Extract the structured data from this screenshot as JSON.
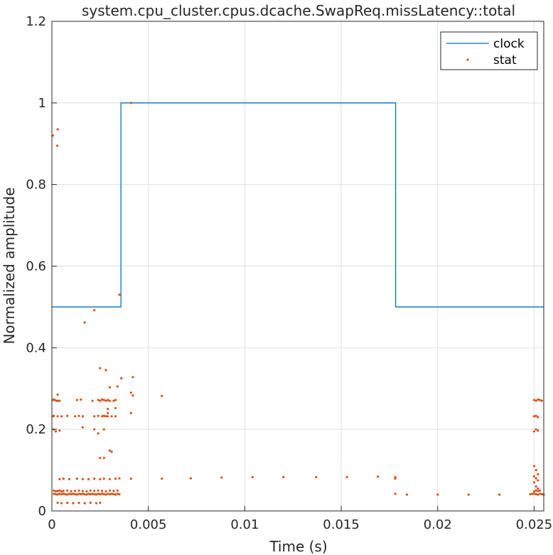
{
  "chart_data": {
    "type": "line",
    "title": "system.cpu_cluster.cpus.dcache.SwapReq.missLatency::total",
    "xlabel": "Time (s)",
    "ylabel": "Normalized amplitude",
    "xlim": [
      0,
      0.0255
    ],
    "ylim": [
      0,
      1.2
    ],
    "grid": true,
    "legend_position": "top-right",
    "x_ticks": [
      0,
      0.005,
      0.01,
      0.015,
      0.02,
      0.025
    ],
    "x_tick_labels": [
      "0",
      "0.005",
      "0.01",
      "0.015",
      "0.02",
      "0.025"
    ],
    "y_ticks": [
      0,
      0.2,
      0.4,
      0.6,
      0.8,
      1,
      1.2
    ],
    "y_tick_labels": [
      "0",
      "0.2",
      "0.4",
      "0.6",
      "0.8",
      "1",
      "1.2"
    ],
    "series": [
      {
        "name": "clock",
        "style": "line",
        "color": "#0072BD",
        "x": [
          0,
          0.00358,
          0.00358,
          0.01782,
          0.01782,
          0.0255
        ],
        "y": [
          0.5,
          0.5,
          1.0,
          1.0,
          0.5,
          0.5
        ]
      },
      {
        "name": "stat",
        "style": "points",
        "color": "#D95319",
        "points": [
          [
            5e-05,
            0.92
          ],
          [
            0.0003,
            0.935
          ],
          [
            0.00028,
            0.895
          ],
          [
            0.0017,
            0.462
          ],
          [
            0.0022,
            0.492
          ],
          [
            0.0035,
            0.53
          ],
          [
            0.0041,
            1.0
          ],
          [
            0.0025,
            0.35
          ],
          [
            0.0028,
            0.345
          ],
          [
            0.0036,
            0.325
          ],
          [
            0.0042,
            0.328
          ],
          [
            0.003,
            0.303
          ],
          [
            0.0034,
            0.305
          ],
          [
            0.0041,
            0.29
          ],
          [
            0.0042,
            0.283
          ],
          [
            0.0057,
            0.282
          ],
          [
            0.0003,
            0.285
          ],
          [
            0.0029,
            0.25
          ],
          [
            0.0033,
            0.252
          ],
          [
            0.003,
            0.148
          ],
          [
            0.0031,
            0.145
          ],
          [
            0.0027,
            0.13
          ],
          [
            0.0025,
            0.13
          ],
          [
            0.0022,
            0.2
          ],
          [
            0.0024,
            0.19
          ],
          [
            0.0016,
            0.205
          ],
          [
            0.0027,
            0.2
          ],
          [
            0.0029,
            0.24
          ],
          [
            0.0041,
            0.24
          ],
          [
            0.0001,
            0.2
          ],
          [
            0.0002,
            0.195
          ],
          [
            0.0004,
            0.197
          ],
          [
            0.00023,
            0.27
          ],
          [
            5e-05,
            0.272
          ],
          [
            0.0001,
            0.273
          ],
          [
            0.00015,
            0.272
          ],
          [
            0.0003,
            0.27
          ],
          [
            0.0004,
            0.27
          ],
          [
            0.0013,
            0.272
          ],
          [
            0.0015,
            0.273
          ],
          [
            0.0021,
            0.27
          ],
          [
            0.0024,
            0.272
          ],
          [
            0.0025,
            0.27
          ],
          [
            0.0026,
            0.273
          ],
          [
            0.0027,
            0.272
          ],
          [
            0.0028,
            0.27
          ],
          [
            0.0029,
            0.272
          ],
          [
            0.003,
            0.27
          ],
          [
            0.0032,
            0.27
          ],
          [
            0.0033,
            0.272
          ],
          [
            5e-05,
            0.232
          ],
          [
            0.0001,
            0.233
          ],
          [
            0.0003,
            0.232
          ],
          [
            0.0005,
            0.232
          ],
          [
            0.0008,
            0.233
          ],
          [
            0.0012,
            0.232
          ],
          [
            0.0014,
            0.233
          ],
          [
            0.0016,
            0.232
          ],
          [
            0.0022,
            0.232
          ],
          [
            0.0024,
            0.233
          ],
          [
            0.0026,
            0.232
          ],
          [
            0.0027,
            0.233
          ],
          [
            0.0028,
            0.232
          ],
          [
            0.0029,
            0.232
          ],
          [
            0.0031,
            0.232
          ],
          [
            0.0033,
            0.232
          ],
          [
            0.0004,
            0.078
          ],
          [
            0.0006,
            0.079
          ],
          [
            0.0009,
            0.078
          ],
          [
            0.0013,
            0.079
          ],
          [
            0.0016,
            0.078
          ],
          [
            0.0019,
            0.078
          ],
          [
            0.0022,
            0.079
          ],
          [
            0.0025,
            0.078
          ],
          [
            0.0027,
            0.079
          ],
          [
            0.003,
            0.078
          ],
          [
            0.0033,
            0.079
          ],
          [
            0.0035,
            0.08
          ],
          [
            0.0041,
            0.079
          ],
          [
            0.0057,
            0.079
          ],
          [
            0.0072,
            0.08
          ],
          [
            0.0088,
            0.082
          ],
          [
            0.0104,
            0.083
          ],
          [
            0.012,
            0.083
          ],
          [
            0.0137,
            0.083
          ],
          [
            0.0153,
            0.083
          ],
          [
            0.0169,
            0.084
          ],
          [
            0.0178,
            0.083
          ],
          [
            0.0178,
            0.079
          ],
          [
            0.0178,
            0.042
          ],
          [
            0.0184,
            0.04
          ],
          [
            0.02,
            0.04
          ],
          [
            0.0216,
            0.04
          ],
          [
            0.0232,
            0.04
          ],
          [
            0.0001,
            0.05
          ],
          [
            0.0002,
            0.048
          ],
          [
            0.0003,
            0.049
          ],
          [
            0.0004,
            0.05
          ],
          [
            0.0005,
            0.048
          ],
          [
            0.0006,
            0.049
          ],
          [
            0.0008,
            0.05
          ],
          [
            0.001,
            0.048
          ],
          [
            0.0012,
            0.049
          ],
          [
            0.0014,
            0.05
          ],
          [
            0.0016,
            0.049
          ],
          [
            0.0018,
            0.048
          ],
          [
            0.002,
            0.05
          ],
          [
            0.0022,
            0.049
          ],
          [
            0.0024,
            0.05
          ],
          [
            0.0026,
            0.049
          ],
          [
            0.0028,
            0.048
          ],
          [
            0.003,
            0.05
          ],
          [
            0.0032,
            0.049
          ],
          [
            0.0034,
            0.05
          ],
          [
            0.0001,
            0.042
          ],
          [
            0.0002,
            0.041
          ],
          [
            0.0003,
            0.04
          ],
          [
            0.0004,
            0.042
          ],
          [
            0.0005,
            0.041
          ],
          [
            0.0006,
            0.042
          ],
          [
            0.0007,
            0.041
          ],
          [
            0.0008,
            0.04
          ],
          [
            0.0009,
            0.042
          ],
          [
            0.001,
            0.041
          ],
          [
            0.0011,
            0.042
          ],
          [
            0.0012,
            0.041
          ],
          [
            0.0013,
            0.04
          ],
          [
            0.0014,
            0.042
          ],
          [
            0.0015,
            0.041
          ],
          [
            0.0016,
            0.042
          ],
          [
            0.0017,
            0.041
          ],
          [
            0.0018,
            0.04
          ],
          [
            0.0019,
            0.042
          ],
          [
            0.002,
            0.041
          ],
          [
            0.0021,
            0.042
          ],
          [
            0.0022,
            0.041
          ],
          [
            0.0023,
            0.04
          ],
          [
            0.0024,
            0.042
          ],
          [
            0.0025,
            0.041
          ],
          [
            0.0026,
            0.042
          ],
          [
            0.0027,
            0.041
          ],
          [
            0.0028,
            0.04
          ],
          [
            0.0029,
            0.042
          ],
          [
            0.003,
            0.041
          ],
          [
            0.0031,
            0.042
          ],
          [
            0.0032,
            0.041
          ],
          [
            0.0033,
            0.04
          ],
          [
            0.0034,
            0.042
          ],
          [
            0.0035,
            0.041
          ],
          [
            0.0003,
            0.02
          ],
          [
            0.0005,
            0.019
          ],
          [
            0.0008,
            0.02
          ],
          [
            0.0011,
            0.019
          ],
          [
            0.0014,
            0.02
          ],
          [
            0.0017,
            0.019
          ],
          [
            0.002,
            0.02
          ],
          [
            0.0023,
            0.019
          ],
          [
            0.0025,
            0.02
          ],
          [
            0.025,
            0.272
          ],
          [
            0.0251,
            0.27
          ],
          [
            0.0252,
            0.273
          ],
          [
            0.0253,
            0.272
          ],
          [
            0.0254,
            0.27
          ],
          [
            0.025,
            0.232
          ],
          [
            0.0251,
            0.233
          ],
          [
            0.0252,
            0.23
          ],
          [
            0.025,
            0.195
          ],
          [
            0.0251,
            0.2
          ],
          [
            0.0252,
            0.197
          ],
          [
            0.025,
            0.11
          ],
          [
            0.0251,
            0.1
          ],
          [
            0.0252,
            0.09
          ],
          [
            0.025,
            0.085
          ],
          [
            0.0251,
            0.08
          ],
          [
            0.0252,
            0.075
          ],
          [
            0.025,
            0.07
          ],
          [
            0.0251,
            0.06
          ],
          [
            0.0252,
            0.055
          ],
          [
            0.025,
            0.048
          ],
          [
            0.0251,
            0.05
          ],
          [
            0.0252,
            0.049
          ],
          [
            0.0253,
            0.05
          ],
          [
            0.025,
            0.042
          ],
          [
            0.0251,
            0.041
          ],
          [
            0.0252,
            0.04
          ],
          [
            0.0253,
            0.042
          ],
          [
            0.0254,
            0.041
          ],
          [
            0.0255,
            0.04
          ],
          [
            0.0249,
            0.042
          ],
          [
            0.0248,
            0.041
          ]
        ]
      }
    ]
  }
}
